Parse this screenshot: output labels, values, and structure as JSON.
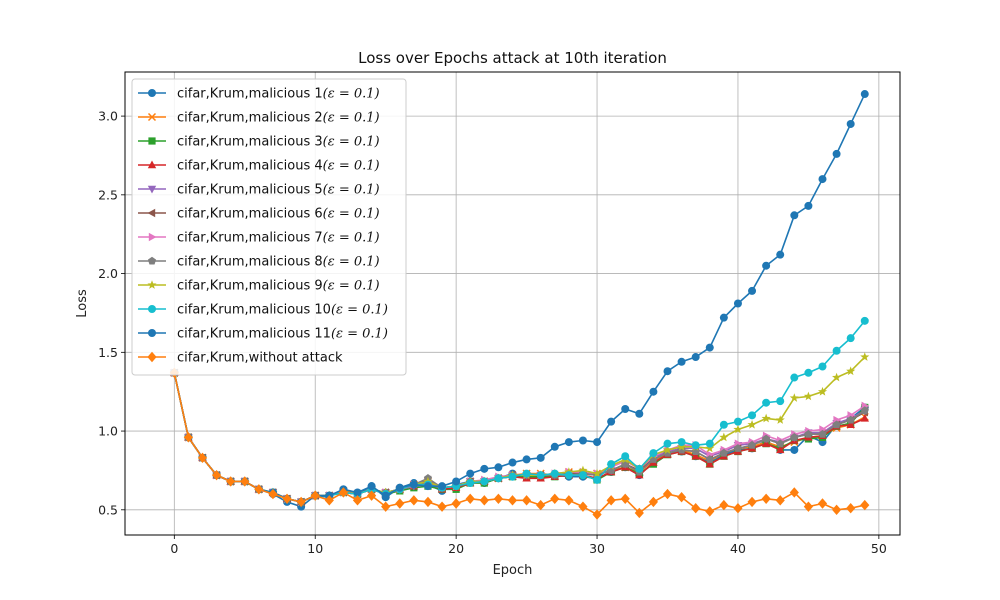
{
  "chart_data": {
    "type": "line",
    "title": "Loss over Epochs attack at 10th iteration",
    "xlabel": "Epoch",
    "ylabel": "Loss",
    "xlim": [
      -3.5,
      51.5
    ],
    "ylim": [
      0.34,
      3.28
    ],
    "xticks": [
      0,
      10,
      20,
      30,
      40,
      50
    ],
    "yticks": [
      0.5,
      1.0,
      1.5,
      2.0,
      2.5,
      3.0
    ],
    "ytick_labels": [
      "0.5",
      "1.0",
      "1.5",
      "2.0",
      "2.5",
      "3.0"
    ],
    "grid": true,
    "legend_position": "upper-left",
    "x": [
      0,
      1,
      2,
      3,
      4,
      5,
      6,
      7,
      8,
      9,
      10,
      11,
      12,
      13,
      14,
      15,
      16,
      17,
      18,
      19,
      20,
      21,
      22,
      23,
      24,
      25,
      26,
      27,
      28,
      29,
      30,
      31,
      32,
      33,
      34,
      35,
      36,
      37,
      38,
      39,
      40,
      41,
      42,
      43,
      44,
      45,
      46,
      47,
      48,
      49
    ],
    "series": [
      {
        "name": "cifar,Krum,malicious 1",
        "label_math": "(ε = 0.1)",
        "color": "#1f77b4",
        "marker": "circle",
        "values": [
          1.37,
          0.96,
          0.83,
          0.72,
          0.68,
          0.68,
          0.63,
          0.6,
          0.55,
          0.52,
          0.59,
          0.58,
          0.63,
          0.6,
          0.65,
          0.58,
          0.64,
          0.67,
          0.66,
          0.62,
          0.66,
          0.68,
          0.67,
          0.7,
          0.73,
          0.71,
          0.71,
          0.72,
          0.71,
          0.71,
          0.7,
          0.74,
          0.77,
          0.72,
          0.8,
          0.86,
          0.87,
          0.84,
          0.8,
          0.85,
          0.88,
          0.89,
          0.94,
          0.88,
          0.88,
          0.97,
          0.93,
          1.04,
          1.08,
          1.15
        ]
      },
      {
        "name": "cifar,Krum,malicious 2",
        "label_math": "(ε = 0.1)",
        "color": "#ff7f0e",
        "marker": "x",
        "values": [
          1.37,
          0.96,
          0.83,
          0.72,
          0.68,
          0.68,
          0.63,
          0.61,
          0.57,
          0.55,
          0.59,
          0.59,
          0.62,
          0.6,
          0.63,
          0.61,
          0.63,
          0.66,
          0.68,
          0.64,
          0.65,
          0.68,
          0.68,
          0.7,
          0.72,
          0.73,
          0.73,
          0.72,
          0.74,
          0.73,
          0.73,
          0.75,
          0.77,
          0.74,
          0.81,
          0.86,
          0.88,
          0.85,
          0.81,
          0.86,
          0.89,
          0.9,
          0.93,
          0.9,
          0.93,
          0.96,
          0.97,
          1.02,
          1.04,
          1.09
        ]
      },
      {
        "name": "cifar,Krum,malicious 3",
        "label_math": "(ε = 0.1)",
        "color": "#2ca02c",
        "marker": "square",
        "values": [
          1.37,
          0.96,
          0.83,
          0.72,
          0.68,
          0.68,
          0.63,
          0.61,
          0.57,
          0.55,
          0.59,
          0.59,
          0.61,
          0.6,
          0.63,
          0.6,
          0.62,
          0.64,
          0.65,
          0.63,
          0.63,
          0.67,
          0.67,
          0.7,
          0.71,
          0.71,
          0.71,
          0.71,
          0.72,
          0.72,
          0.69,
          0.74,
          0.77,
          0.73,
          0.79,
          0.85,
          0.87,
          0.84,
          0.79,
          0.84,
          0.87,
          0.89,
          0.92,
          0.89,
          0.94,
          0.95,
          0.96,
          1.03,
          1.05,
          1.15
        ]
      },
      {
        "name": "cifar,Krum,malicious 4",
        "label_math": "(ε = 0.1)",
        "color": "#d62728",
        "marker": "triangle-up",
        "values": [
          1.37,
          0.96,
          0.83,
          0.72,
          0.68,
          0.68,
          0.63,
          0.61,
          0.57,
          0.55,
          0.59,
          0.59,
          0.61,
          0.6,
          0.63,
          0.6,
          0.63,
          0.65,
          0.67,
          0.63,
          0.64,
          0.67,
          0.68,
          0.7,
          0.71,
          0.7,
          0.7,
          0.71,
          0.72,
          0.72,
          0.7,
          0.74,
          0.77,
          0.72,
          0.8,
          0.85,
          0.87,
          0.84,
          0.79,
          0.84,
          0.87,
          0.89,
          0.92,
          0.88,
          0.94,
          0.96,
          0.97,
          1.03,
          1.04,
          1.08
        ]
      },
      {
        "name": "cifar,Krum,malicious 5",
        "label_math": "(ε = 0.1)",
        "color": "#9467bd",
        "marker": "triangle-down",
        "values": [
          1.37,
          0.96,
          0.83,
          0.72,
          0.68,
          0.68,
          0.63,
          0.61,
          0.57,
          0.55,
          0.59,
          0.59,
          0.61,
          0.6,
          0.63,
          0.61,
          0.63,
          0.65,
          0.66,
          0.64,
          0.65,
          0.68,
          0.68,
          0.7,
          0.72,
          0.72,
          0.72,
          0.72,
          0.73,
          0.73,
          0.72,
          0.75,
          0.79,
          0.75,
          0.83,
          0.87,
          0.89,
          0.89,
          0.84,
          0.87,
          0.91,
          0.92,
          0.95,
          0.93,
          0.96,
          0.99,
          0.99,
          1.05,
          1.08,
          1.13
        ]
      },
      {
        "name": "cifar,Krum,malicious 6",
        "label_math": "(ε = 0.1)",
        "color": "#8c564b",
        "marker": "triangle-left",
        "values": [
          1.37,
          0.96,
          0.83,
          0.72,
          0.68,
          0.68,
          0.63,
          0.61,
          0.57,
          0.55,
          0.59,
          0.59,
          0.61,
          0.6,
          0.63,
          0.61,
          0.63,
          0.66,
          0.69,
          0.64,
          0.65,
          0.68,
          0.68,
          0.7,
          0.72,
          0.72,
          0.72,
          0.72,
          0.73,
          0.73,
          0.72,
          0.75,
          0.79,
          0.75,
          0.82,
          0.86,
          0.88,
          0.87,
          0.82,
          0.86,
          0.89,
          0.91,
          0.95,
          0.92,
          0.96,
          0.98,
          0.98,
          1.04,
          1.07,
          1.12
        ]
      },
      {
        "name": "cifar,Krum,malicious 7",
        "label_math": "(ε = 0.1)",
        "color": "#e377c2",
        "marker": "triangle-right",
        "values": [
          1.37,
          0.96,
          0.83,
          0.72,
          0.68,
          0.68,
          0.63,
          0.61,
          0.57,
          0.55,
          0.59,
          0.59,
          0.61,
          0.6,
          0.63,
          0.61,
          0.63,
          0.66,
          0.68,
          0.64,
          0.65,
          0.68,
          0.69,
          0.71,
          0.72,
          0.72,
          0.72,
          0.73,
          0.74,
          0.74,
          0.73,
          0.77,
          0.81,
          0.76,
          0.84,
          0.88,
          0.91,
          0.91,
          0.85,
          0.88,
          0.92,
          0.93,
          0.97,
          0.94,
          0.98,
          1.0,
          1.01,
          1.07,
          1.1,
          1.16
        ]
      },
      {
        "name": "cifar,Krum,malicious 8",
        "label_math": "(ε = 0.1)",
        "color": "#7f7f7f",
        "marker": "pentagon",
        "values": [
          1.37,
          0.96,
          0.83,
          0.72,
          0.68,
          0.68,
          0.63,
          0.61,
          0.57,
          0.55,
          0.59,
          0.59,
          0.61,
          0.6,
          0.63,
          0.61,
          0.63,
          0.66,
          0.7,
          0.64,
          0.65,
          0.68,
          0.68,
          0.7,
          0.72,
          0.72,
          0.72,
          0.72,
          0.72,
          0.73,
          0.72,
          0.75,
          0.79,
          0.74,
          0.82,
          0.86,
          0.88,
          0.87,
          0.82,
          0.86,
          0.89,
          0.91,
          0.95,
          0.92,
          0.96,
          0.98,
          0.98,
          1.04,
          1.07,
          1.13
        ]
      },
      {
        "name": "cifar,Krum,malicious 9",
        "label_math": "(ε = 0.1)",
        "color": "#bcbd22",
        "marker": "star",
        "values": [
          1.37,
          0.96,
          0.83,
          0.72,
          0.68,
          0.68,
          0.63,
          0.61,
          0.57,
          0.55,
          0.59,
          0.59,
          0.61,
          0.6,
          0.63,
          0.61,
          0.63,
          0.66,
          0.68,
          0.64,
          0.65,
          0.68,
          0.68,
          0.7,
          0.72,
          0.72,
          0.72,
          0.73,
          0.74,
          0.75,
          0.73,
          0.78,
          0.82,
          0.76,
          0.85,
          0.88,
          0.9,
          0.9,
          0.89,
          0.96,
          1.01,
          1.04,
          1.08,
          1.07,
          1.21,
          1.22,
          1.25,
          1.34,
          1.38,
          1.47
        ]
      },
      {
        "name": "cifar,Krum,malicious 10",
        "label_math": "(ε = 0.1)",
        "color": "#17becf",
        "marker": "circle",
        "values": [
          1.37,
          0.96,
          0.83,
          0.72,
          0.68,
          0.68,
          0.63,
          0.61,
          0.57,
          0.55,
          0.59,
          0.59,
          0.61,
          0.6,
          0.63,
          0.6,
          0.63,
          0.66,
          0.66,
          0.64,
          0.65,
          0.67,
          0.68,
          0.7,
          0.71,
          0.73,
          0.72,
          0.73,
          0.72,
          0.72,
          0.69,
          0.79,
          0.84,
          0.76,
          0.86,
          0.92,
          0.93,
          0.91,
          0.92,
          1.04,
          1.06,
          1.1,
          1.18,
          1.19,
          1.34,
          1.37,
          1.41,
          1.51,
          1.59,
          1.7
        ]
      },
      {
        "name": "cifar,Krum,malicious 11",
        "label_math": "(ε = 0.1)",
        "color": "#1f77b4",
        "marker": "circle",
        "values": [
          1.37,
          0.96,
          0.83,
          0.72,
          0.68,
          0.68,
          0.63,
          0.61,
          0.57,
          0.55,
          0.59,
          0.59,
          0.63,
          0.61,
          0.65,
          0.59,
          0.64,
          0.66,
          0.65,
          0.65,
          0.68,
          0.73,
          0.76,
          0.77,
          0.8,
          0.82,
          0.83,
          0.9,
          0.93,
          0.94,
          0.93,
          1.06,
          1.14,
          1.11,
          1.25,
          1.38,
          1.44,
          1.47,
          1.53,
          1.72,
          1.81,
          1.89,
          2.05,
          2.12,
          2.37,
          2.43,
          2.6,
          2.76,
          2.95,
          3.14
        ]
      },
      {
        "name": "cifar,Krum,without attack",
        "label_math": "",
        "color": "#ff7f0e",
        "marker": "diamond",
        "values": [
          1.37,
          0.96,
          0.83,
          0.72,
          0.68,
          0.68,
          0.63,
          0.6,
          0.57,
          0.55,
          0.59,
          0.56,
          0.61,
          0.56,
          0.59,
          0.52,
          0.54,
          0.56,
          0.55,
          0.52,
          0.54,
          0.57,
          0.56,
          0.57,
          0.56,
          0.56,
          0.53,
          0.57,
          0.56,
          0.52,
          0.47,
          0.56,
          0.57,
          0.48,
          0.55,
          0.6,
          0.58,
          0.51,
          0.49,
          0.53,
          0.51,
          0.55,
          0.57,
          0.56,
          0.61,
          0.52,
          0.54,
          0.5,
          0.51,
          0.53
        ]
      }
    ]
  }
}
